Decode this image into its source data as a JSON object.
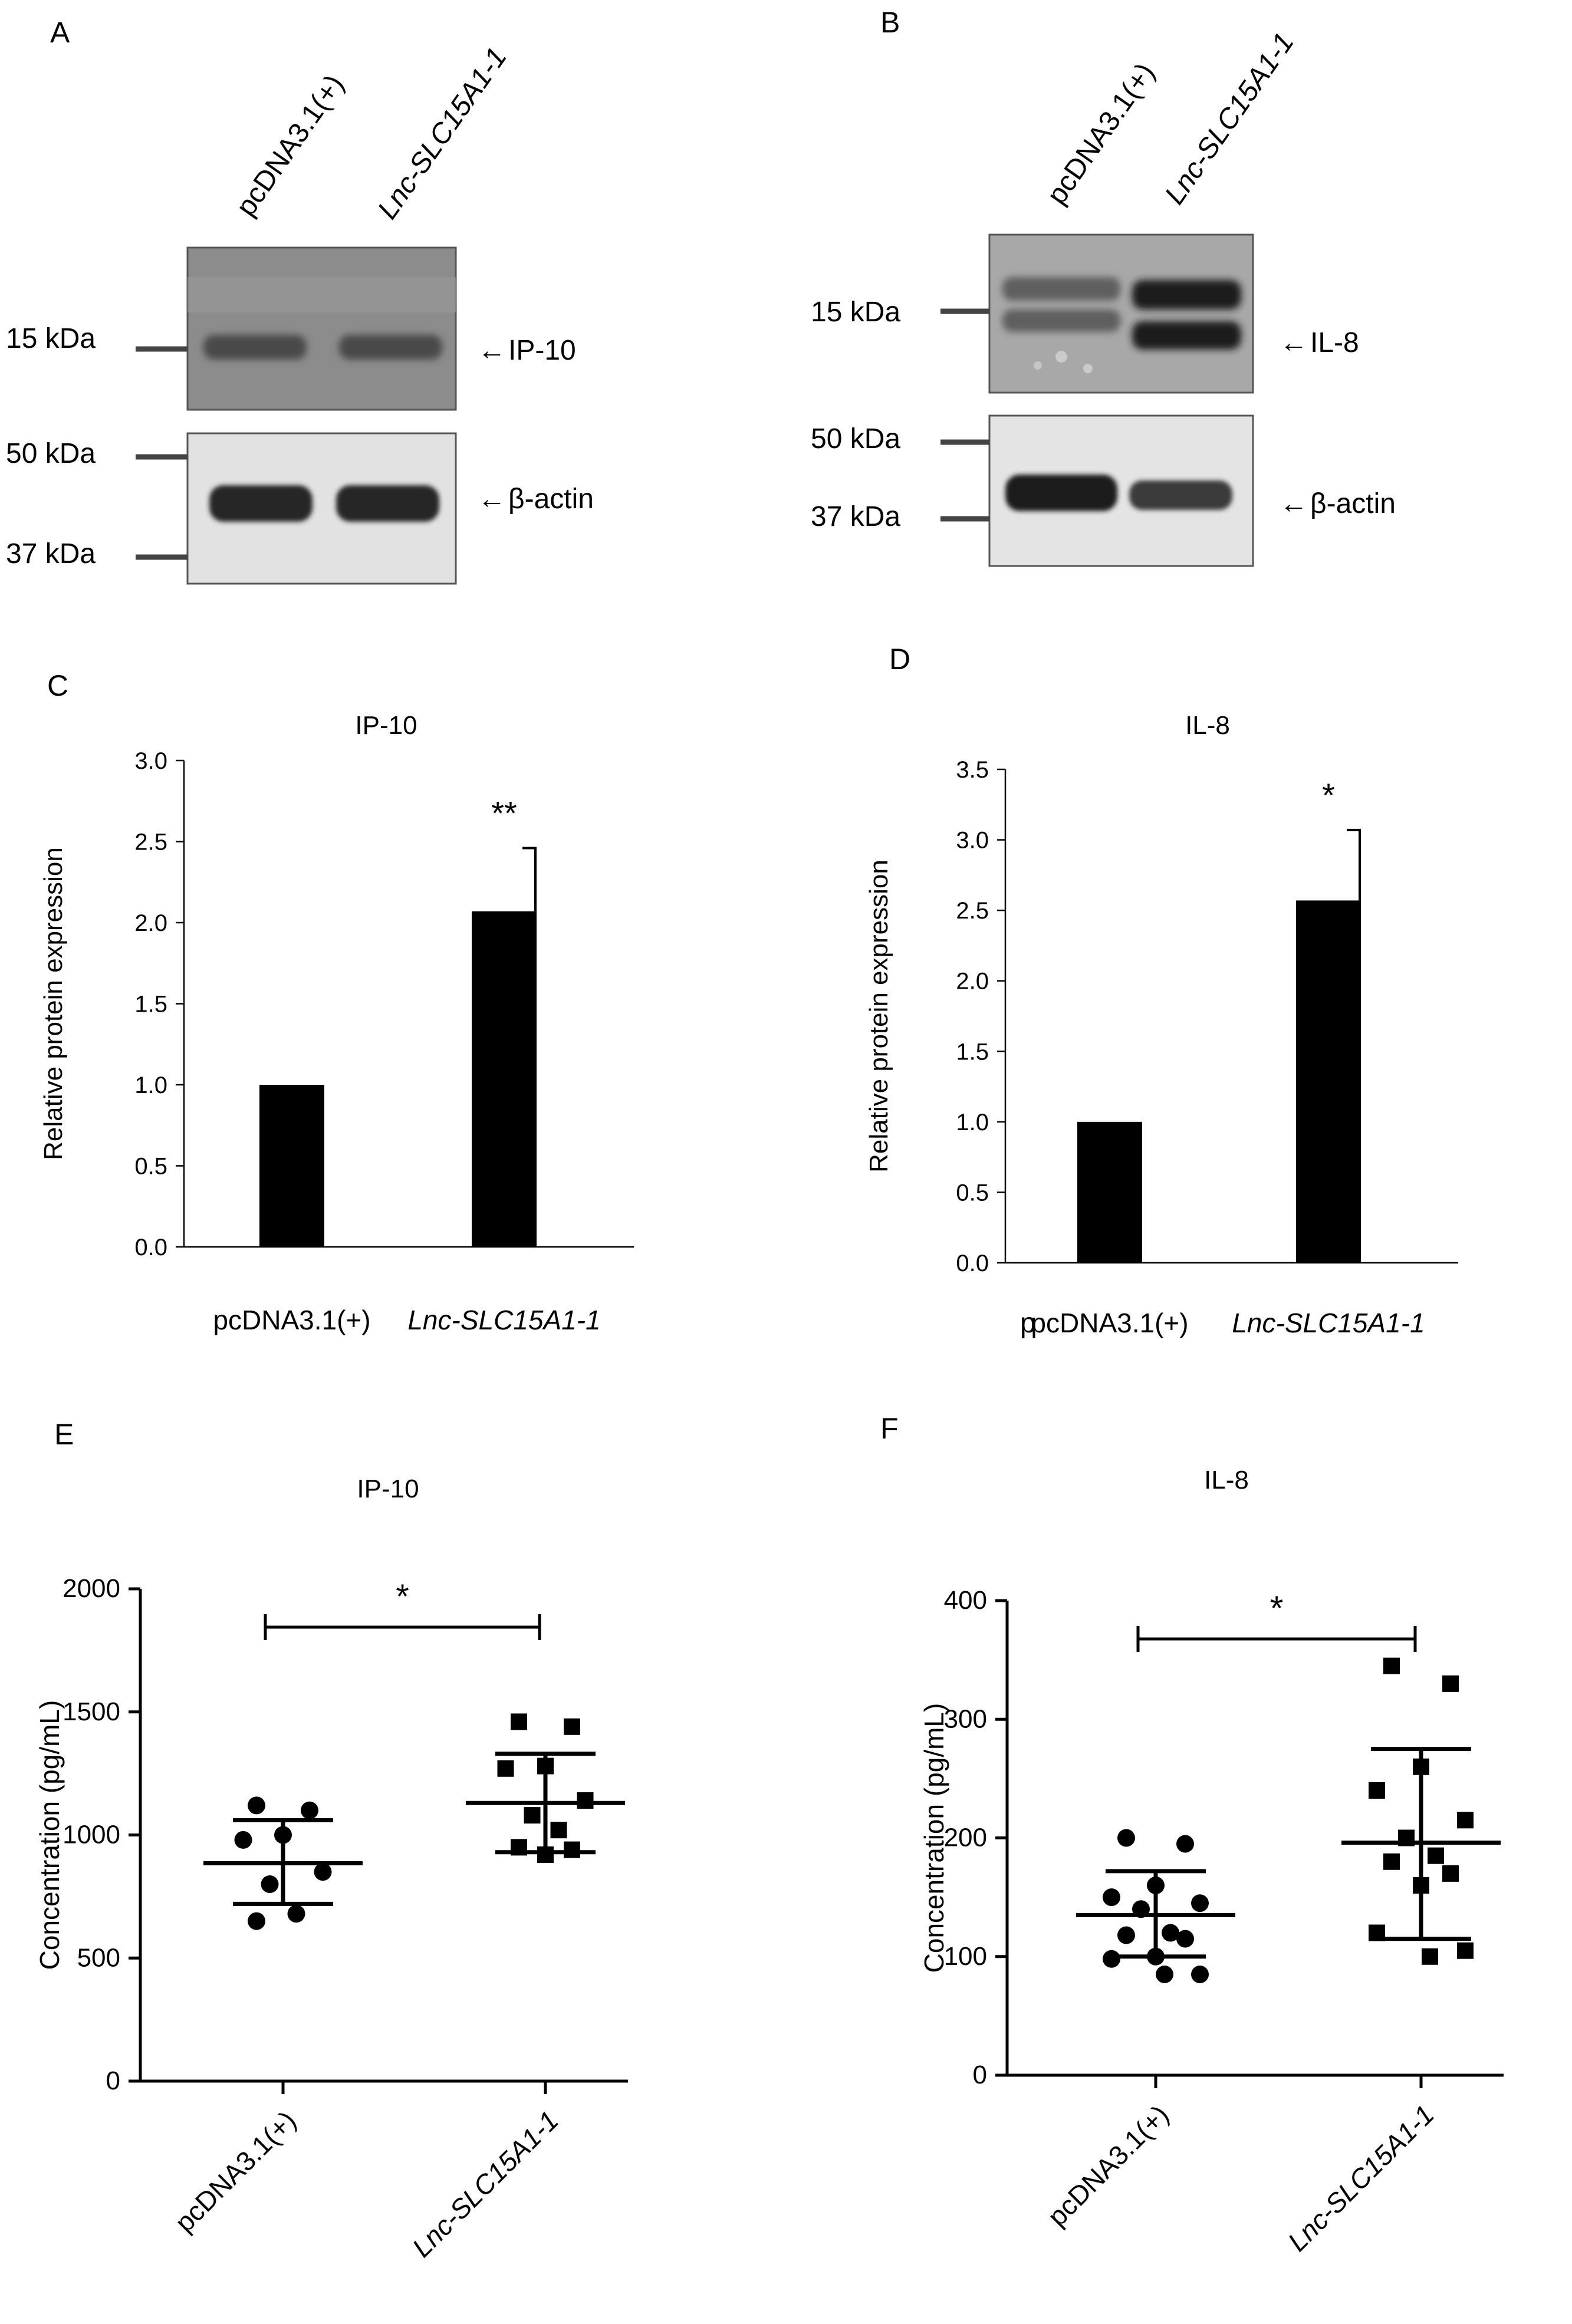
{
  "panels": {
    "A": {
      "label": "A",
      "lanes": [
        "pcDNA3.1(+)",
        "Lnc-SLC15A1-1"
      ],
      "markers_top": [
        "15 kDa"
      ],
      "markers_bottom": [
        "50 kDa",
        "37 kDa"
      ],
      "band_top": "IP-10",
      "band_bottom": "β-actin"
    },
    "B": {
      "label": "B",
      "lanes": [
        "pcDNA3.1(+)",
        "Lnc-SLC15A1-1"
      ],
      "markers_top": [
        "15 kDa"
      ],
      "markers_bottom": [
        "50 kDa",
        "37 kDa"
      ],
      "band_top": "IL-8",
      "band_bottom": "β-actin"
    },
    "C": {
      "label": "C"
    },
    "D": {
      "label": "D",
      "stray_label": "p"
    },
    "E": {
      "label": "E"
    },
    "F": {
      "label": "F"
    }
  },
  "arrow_glyph": "←",
  "chart_data": [
    {
      "id": "C",
      "type": "bar",
      "title": "IP-10",
      "ylabel": "Relative protein expression",
      "categories": [
        "pcDNA3.1(+)",
        "Lnc-SLC15A1-1"
      ],
      "values": [
        1.0,
        2.07
      ],
      "errors": [
        0,
        0.39
      ],
      "significance": [
        "",
        "**"
      ],
      "ylim": [
        0,
        3.0
      ],
      "yticks": [
        "0.0",
        "0.5",
        "1.0",
        "1.5",
        "2.0",
        "2.5",
        "3.0"
      ]
    },
    {
      "id": "D",
      "type": "bar",
      "title": "IL-8",
      "ylabel": "Relative protein expression",
      "categories": [
        "pcDNA3.1(+)",
        "Lnc-SLC15A1-1"
      ],
      "values": [
        1.0,
        2.57
      ],
      "errors": [
        0,
        0.5
      ],
      "significance": [
        "",
        "*"
      ],
      "ylim": [
        0,
        3.5
      ],
      "yticks": [
        "0.0",
        "0.5",
        "1.0",
        "1.5",
        "2.0",
        "2.5",
        "3.0",
        "3.5"
      ]
    },
    {
      "id": "E",
      "type": "scatter",
      "title": "IP-10",
      "ylabel": "Concentration (pg/mL)",
      "categories": [
        "pcDNA3.1(+)",
        "Lnc-SLC15A1-1"
      ],
      "series": [
        {
          "group": "pcDNA3.1(+)",
          "marker": "circle",
          "points": [
            1120,
            1100,
            1000,
            980,
            850,
            800,
            680,
            650
          ],
          "mean": 885,
          "sd_low": 720,
          "sd_high": 1060
        },
        {
          "group": "Lnc-SLC15A1-1",
          "marker": "square",
          "points": [
            1460,
            1440,
            1280,
            1270,
            1140,
            1080,
            1020,
            950,
            940,
            920
          ],
          "mean": 1130,
          "sd_low": 930,
          "sd_high": 1330
        }
      ],
      "significance": "*",
      "ylim": [
        0,
        2000
      ],
      "yticks": [
        "0",
        "500",
        "1000",
        "1500",
        "2000"
      ]
    },
    {
      "id": "F",
      "type": "scatter",
      "title": "IL-8",
      "ylabel": "Concentration (pg/mL)",
      "categories": [
        "pcDNA3.1(+)",
        "Lnc-SLC15A1-1"
      ],
      "series": [
        {
          "group": "pcDNA3.1(+)",
          "marker": "circle",
          "points": [
            200,
            195,
            160,
            150,
            145,
            140,
            120,
            118,
            115,
            100,
            98,
            85,
            85
          ],
          "mean": 135,
          "sd_low": 100,
          "sd_high": 172
        },
        {
          "group": "Lnc-SLC15A1-1",
          "marker": "square",
          "points": [
            345,
            330,
            260,
            240,
            215,
            200,
            185,
            180,
            170,
            160,
            120,
            105,
            100
          ],
          "mean": 196,
          "sd_low": 115,
          "sd_high": 275
        }
      ],
      "significance": "*",
      "ylim": [
        0,
        400
      ],
      "yticks": [
        "0",
        "100",
        "200",
        "300",
        "400"
      ]
    }
  ]
}
